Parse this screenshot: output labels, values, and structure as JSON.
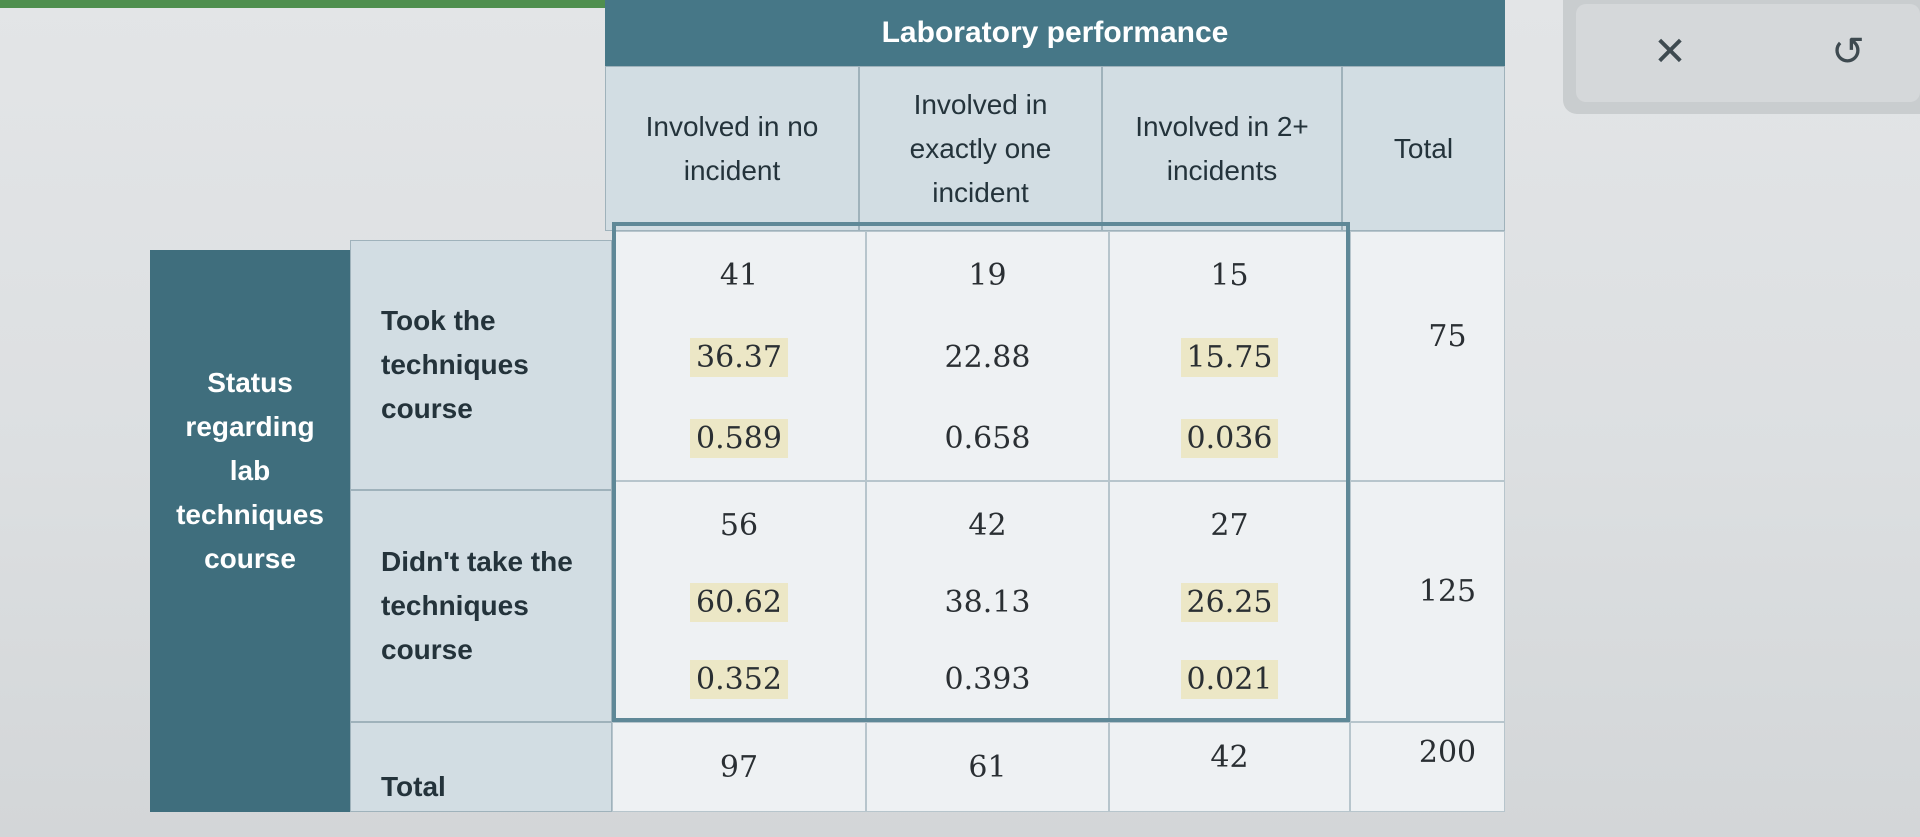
{
  "table": {
    "super_header": "Laboratory performance",
    "columns": [
      "Involved in no incident",
      "Involved in exactly one incident",
      "Involved in 2+ incidents",
      "Total"
    ],
    "group_label": "Status regarding lab techniques course",
    "rows": [
      {
        "label": "Took the techniques course",
        "cells": [
          {
            "observed": "41",
            "expected": "36.37",
            "component": "0.589"
          },
          {
            "observed": "19",
            "expected": "22.88",
            "component": "0.658"
          },
          {
            "observed": "15",
            "expected": "15.75",
            "component": "0.036"
          }
        ],
        "total": "75"
      },
      {
        "label": "Didn't take the techniques course",
        "cells": [
          {
            "observed": "56",
            "expected": "60.62",
            "component": "0.352"
          },
          {
            "observed": "42",
            "expected": "38.13",
            "component": "0.393"
          },
          {
            "observed": "27",
            "expected": "26.25",
            "component": "0.021"
          }
        ],
        "total": "125"
      }
    ],
    "total_row": {
      "label": "Total",
      "values": [
        "97",
        "61",
        "42",
        "200"
      ]
    }
  },
  "toolbar": {
    "close_glyph": "✕",
    "reset_glyph": "↺"
  }
}
